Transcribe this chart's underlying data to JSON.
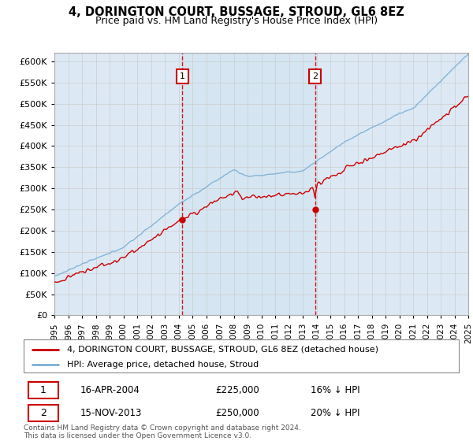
{
  "title": "4, DORINGTON COURT, BUSSAGE, STROUD, GL6 8EZ",
  "subtitle": "Price paid vs. HM Land Registry's House Price Index (HPI)",
  "ylim": [
    0,
    620000
  ],
  "yticks": [
    0,
    50000,
    100000,
    150000,
    200000,
    250000,
    300000,
    350000,
    400000,
    450000,
    500000,
    550000,
    600000
  ],
  "xlim": [
    1995,
    2025
  ],
  "purchase1_date_num": 2004.29,
  "purchase1_price": 225000,
  "purchase2_date_num": 2013.88,
  "purchase2_price": 250000,
  "line_color_property": "#cc0000",
  "line_color_hpi": "#7bafd4",
  "background_color": "#dce9f5",
  "grid_color": "#cccccc",
  "legend_label_property": "4, DORINGTON COURT, BUSSAGE, STROUD, GL6 8EZ (detached house)",
  "legend_label_hpi": "HPI: Average price, detached house, Stroud",
  "annotation1_date": "16-APR-2004",
  "annotation1_price": "£225,000",
  "annotation1_hpi": "16% ↓ HPI",
  "annotation2_date": "15-NOV-2013",
  "annotation2_price": "£250,000",
  "annotation2_hpi": "20% ↓ HPI",
  "footer_text": "Contains HM Land Registry data © Crown copyright and database right 2024.\nThis data is licensed under the Open Government Licence v3.0."
}
